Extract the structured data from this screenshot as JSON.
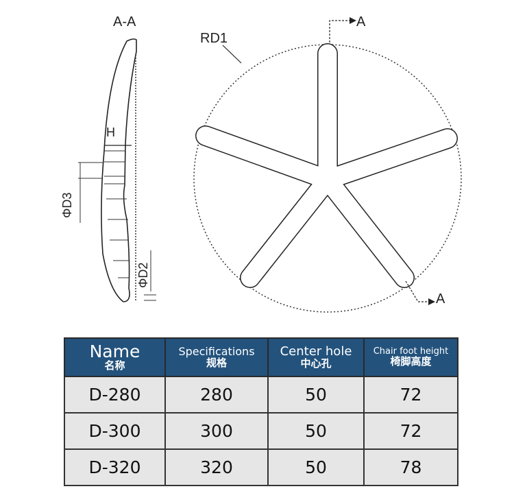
{
  "section_view": {
    "title": "A-A",
    "labels": {
      "h": "H",
      "d3": "ΦD3",
      "d2": "ΦD2"
    }
  },
  "top_view": {
    "radius_label": "RD1",
    "section_mark_top": "A",
    "section_mark_bottom": "A"
  },
  "table": {
    "headers": [
      {
        "en": "Name",
        "zh": "名称"
      },
      {
        "en": "Specifications",
        "zh": "规格"
      },
      {
        "en": "Center hole",
        "zh": "中心孔"
      },
      {
        "en": "Chair foot height",
        "zh": "椅脚高度"
      }
    ],
    "rows": [
      [
        "D-280",
        "280",
        "50",
        "72"
      ],
      [
        "D-300",
        "300",
        "50",
        "72"
      ],
      [
        "D-320",
        "320",
        "50",
        "78"
      ]
    ],
    "header_color": "#23527c"
  }
}
